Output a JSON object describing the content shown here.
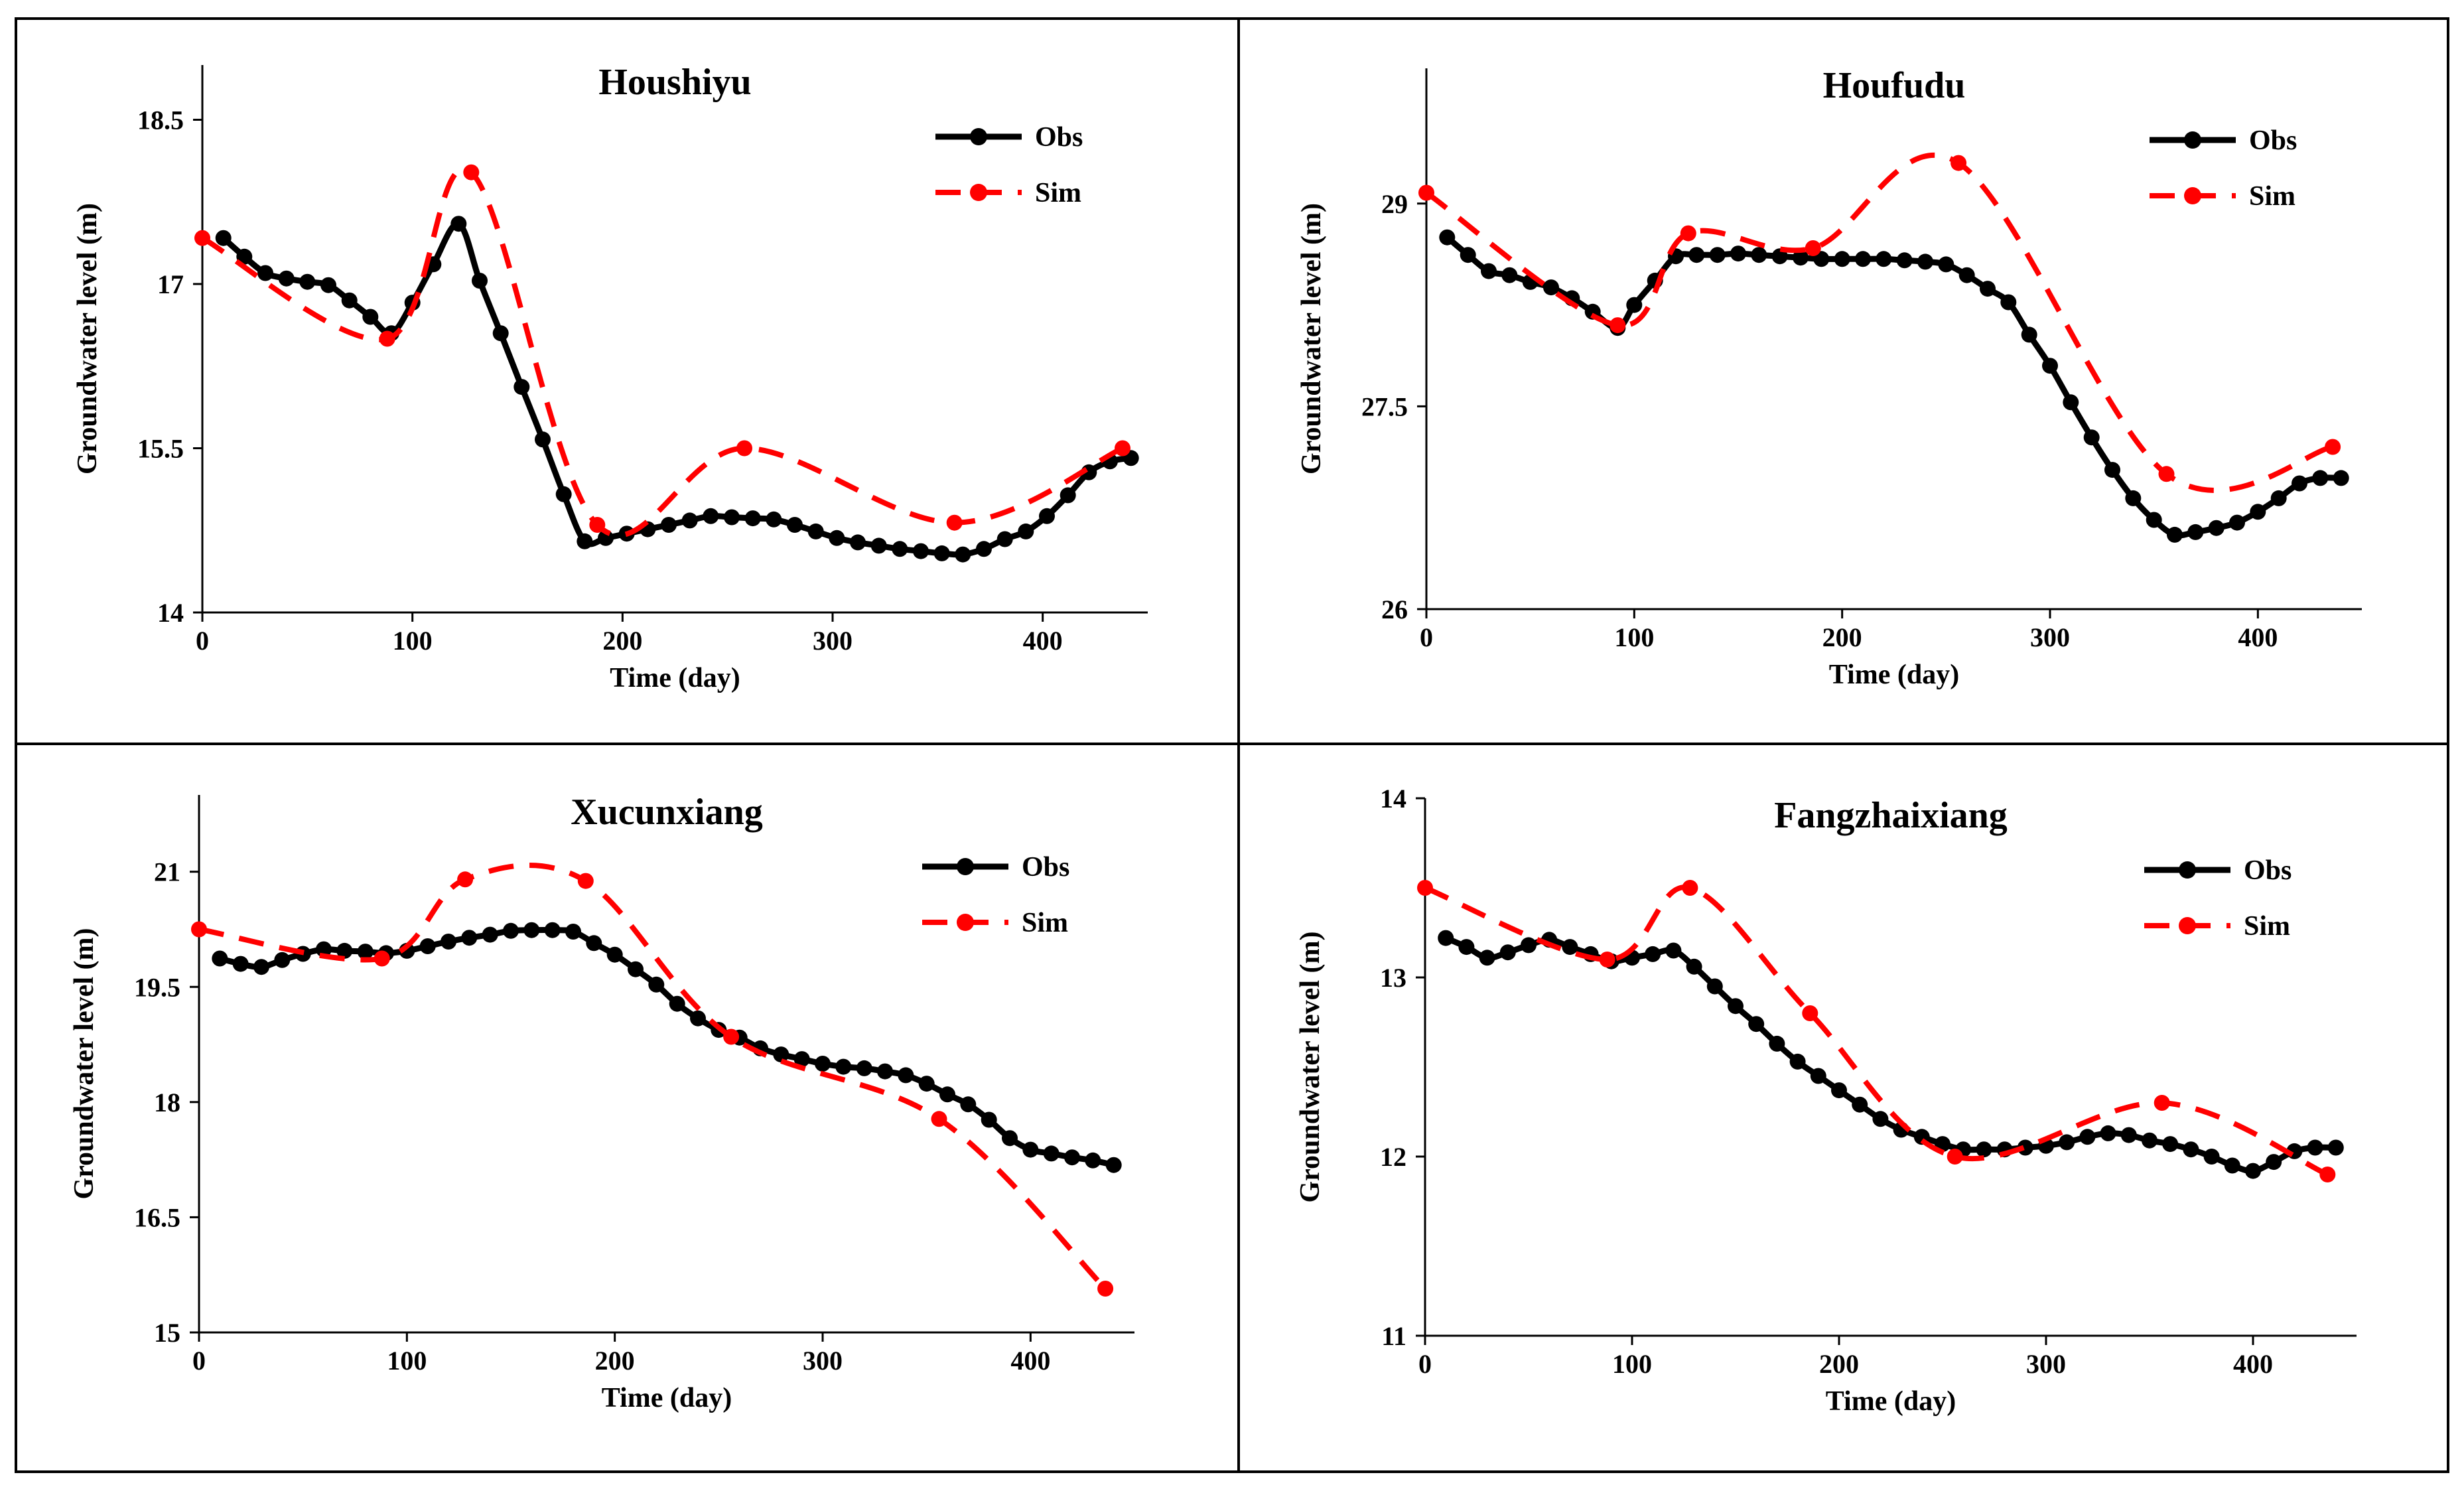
{
  "chart_data": [
    {
      "type": "line",
      "title": "Houshiyu",
      "xlabel": "Time (day)",
      "ylabel": "Groundwater level (m)",
      "xlim": [
        0,
        450
      ],
      "ylim": [
        14,
        19
      ],
      "xticks": [
        0,
        100,
        200,
        300,
        400
      ],
      "yticks": [
        14,
        15.5,
        17,
        18.5
      ],
      "xtick_labels": [
        "0",
        "100",
        "200",
        "300",
        "400"
      ],
      "ytick_labels": [
        "14",
        "15.5",
        "17",
        "18.5"
      ],
      "legend_position": "top-right",
      "series": [
        {
          "name": "Obs",
          "color": "#000000",
          "style": "solid",
          "markers": "all",
          "x": [
            10,
            20,
            30,
            40,
            50,
            60,
            70,
            80,
            90,
            100,
            110,
            122,
            132,
            142,
            152,
            162,
            172,
            182,
            192,
            202,
            212,
            222,
            232,
            242,
            252,
            262,
            272,
            282,
            292,
            302,
            312,
            322,
            332,
            342,
            352,
            362,
            372,
            382,
            392,
            402,
            412,
            422,
            432,
            442
          ],
          "y": [
            17.42,
            17.25,
            17.1,
            17.05,
            17.02,
            16.99,
            16.85,
            16.7,
            16.55,
            16.83,
            17.18,
            17.55,
            17.03,
            16.55,
            16.06,
            15.58,
            15.08,
            14.65,
            14.68,
            14.72,
            14.76,
            14.8,
            14.84,
            14.88,
            14.87,
            14.86,
            14.85,
            14.8,
            14.74,
            14.68,
            14.64,
            14.61,
            14.58,
            14.56,
            14.54,
            14.53,
            14.58,
            14.67,
            14.74,
            14.88,
            15.07,
            15.28,
            15.38,
            15.41
          ]
        },
        {
          "name": "Sim",
          "color": "#ff0000",
          "style": "dashed",
          "markers": "sparse",
          "x": [
            0,
            88,
            128,
            188,
            258,
            358,
            438
          ],
          "y": [
            17.42,
            16.5,
            18.02,
            14.8,
            15.5,
            14.82,
            15.5
          ]
        }
      ]
    },
    {
      "type": "line",
      "title": "Houfudu",
      "xlabel": "Time (day)",
      "ylabel": "Groundwater level (m)",
      "xlim": [
        0,
        450
      ],
      "ylim": [
        26,
        30
      ],
      "xticks": [
        0,
        100,
        200,
        300,
        400
      ],
      "yticks": [
        26,
        27.5,
        29
      ],
      "xtick_labels": [
        "0",
        "100",
        "200",
        "300",
        "400"
      ],
      "ytick_labels": [
        "26",
        "27.5",
        "29"
      ],
      "legend_position": "top-right",
      "series": [
        {
          "name": "Obs",
          "color": "#000000",
          "style": "solid",
          "markers": "all",
          "x": [
            10,
            20,
            30,
            40,
            50,
            60,
            70,
            80,
            92,
            100,
            110,
            120,
            130,
            140,
            150,
            160,
            170,
            180,
            190,
            200,
            210,
            220,
            230,
            240,
            250,
            260,
            270,
            280,
            290,
            300,
            310,
            320,
            330,
            340,
            350,
            360,
            370,
            380,
            390,
            400,
            410,
            420,
            430,
            440
          ],
          "y": [
            28.75,
            28.62,
            28.5,
            28.47,
            28.42,
            28.38,
            28.3,
            28.2,
            28.08,
            28.25,
            28.43,
            28.61,
            28.62,
            28.62,
            28.63,
            28.62,
            28.61,
            28.6,
            28.59,
            28.59,
            28.59,
            28.59,
            28.58,
            28.57,
            28.55,
            28.47,
            28.37,
            28.27,
            28.03,
            27.8,
            27.53,
            27.27,
            27.03,
            26.82,
            26.66,
            26.55,
            26.57,
            26.6,
            26.64,
            26.72,
            26.82,
            26.93,
            26.97,
            26.97
          ]
        },
        {
          "name": "Sim",
          "color": "#ff0000",
          "style": "dashed",
          "markers": "sparse",
          "x": [
            0,
            92,
            126,
            186,
            256,
            356,
            436
          ],
          "y": [
            29.08,
            28.1,
            28.78,
            28.67,
            29.3,
            27.0,
            27.2
          ]
        }
      ]
    },
    {
      "type": "line",
      "title": "Xucunxiang",
      "xlabel": "Time (day)",
      "ylabel": "Groundwater level (m)",
      "xlim": [
        0,
        450
      ],
      "ylim": [
        15,
        22
      ],
      "xticks": [
        0,
        100,
        200,
        300,
        400
      ],
      "yticks": [
        15,
        16.5,
        18,
        19.5,
        21
      ],
      "xtick_labels": [
        "0",
        "100",
        "200",
        "300",
        "400"
      ],
      "ytick_labels": [
        "15",
        "16.5",
        "18",
        "19.5",
        "21"
      ],
      "legend_position": "top-right",
      "series": [
        {
          "name": "Obs",
          "color": "#000000",
          "style": "solid",
          "markers": "all",
          "x": [
            10,
            20,
            30,
            40,
            50,
            60,
            70,
            80,
            90,
            100,
            110,
            120,
            130,
            140,
            150,
            160,
            170,
            180,
            190,
            200,
            210,
            220,
            230,
            240,
            250,
            260,
            270,
            280,
            290,
            300,
            310,
            320,
            330,
            340,
            350,
            360,
            370,
            380,
            390,
            400,
            410,
            420,
            430,
            440
          ],
          "y": [
            19.87,
            19.8,
            19.76,
            19.85,
            19.93,
            19.99,
            19.97,
            19.96,
            19.94,
            19.97,
            20.03,
            20.09,
            20.14,
            20.18,
            20.23,
            20.24,
            20.24,
            20.22,
            20.07,
            19.92,
            19.73,
            19.53,
            19.28,
            19.09,
            18.94,
            18.84,
            18.7,
            18.62,
            18.56,
            18.5,
            18.46,
            18.44,
            18.4,
            18.35,
            18.24,
            18.1,
            17.97,
            17.77,
            17.53,
            17.38,
            17.33,
            17.28,
            17.24,
            17.18
          ]
        },
        {
          "name": "Sim",
          "color": "#ff0000",
          "style": "dashed",
          "markers": "sparse",
          "x": [
            0,
            88,
            128,
            186,
            256,
            356,
            436
          ],
          "y": [
            20.25,
            19.87,
            20.9,
            20.88,
            18.85,
            17.78,
            15.57
          ]
        }
      ]
    },
    {
      "type": "line",
      "title": "Fangzhaixiang",
      "xlabel": "Time (day)",
      "ylabel": "Groundwater level (m)",
      "xlim": [
        0,
        450
      ],
      "ylim": [
        11,
        14
      ],
      "xticks": [
        0,
        100,
        200,
        300,
        400
      ],
      "yticks": [
        11,
        12,
        13,
        14
      ],
      "xtick_labels": [
        "0",
        "100",
        "200",
        "300",
        "400"
      ],
      "ytick_labels": [
        "11",
        "12",
        "13",
        "14"
      ],
      "legend_position": "top-right",
      "series": [
        {
          "name": "Obs",
          "color": "#000000",
          "style": "solid",
          "markers": "all",
          "x": [
            10,
            20,
            30,
            40,
            50,
            60,
            70,
            80,
            90,
            100,
            110,
            120,
            130,
            140,
            150,
            160,
            170,
            180,
            190,
            200,
            210,
            220,
            230,
            240,
            250,
            260,
            270,
            280,
            290,
            300,
            310,
            320,
            330,
            340,
            350,
            360,
            370,
            380,
            390,
            400,
            410,
            420,
            430,
            440
          ],
          "y": [
            13.22,
            13.17,
            13.11,
            13.14,
            13.18,
            13.21,
            13.17,
            13.13,
            13.09,
            13.11,
            13.13,
            13.15,
            13.06,
            12.95,
            12.84,
            12.74,
            12.63,
            12.53,
            12.45,
            12.37,
            12.29,
            12.21,
            12.15,
            12.11,
            12.07,
            12.04,
            12.04,
            12.04,
            12.05,
            12.06,
            12.08,
            12.11,
            12.13,
            12.12,
            12.09,
            12.07,
            12.04,
            12.0,
            11.95,
            11.92,
            11.97,
            12.03,
            12.05,
            12.05
          ]
        },
        {
          "name": "Sim",
          "color": "#ff0000",
          "style": "dashed",
          "markers": "sparse",
          "x": [
            0,
            88,
            128,
            186,
            256,
            356,
            436
          ],
          "y": [
            13.5,
            13.1,
            13.5,
            12.8,
            12.0,
            12.3,
            11.9
          ]
        }
      ]
    }
  ]
}
